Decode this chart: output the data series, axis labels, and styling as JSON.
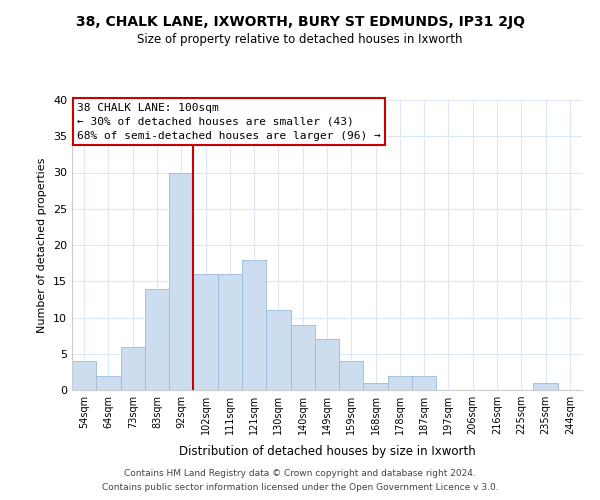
{
  "title": "38, CHALK LANE, IXWORTH, BURY ST EDMUNDS, IP31 2JQ",
  "subtitle": "Size of property relative to detached houses in Ixworth",
  "xlabel": "Distribution of detached houses by size in Ixworth",
  "ylabel": "Number of detached properties",
  "bar_color": "#cdddf0",
  "bar_edge_color": "#9bbad8",
  "highlight_line_color": "#cc0000",
  "categories": [
    "54sqm",
    "64sqm",
    "73sqm",
    "83sqm",
    "92sqm",
    "102sqm",
    "111sqm",
    "121sqm",
    "130sqm",
    "140sqm",
    "149sqm",
    "159sqm",
    "168sqm",
    "178sqm",
    "187sqm",
    "197sqm",
    "206sqm",
    "216sqm",
    "225sqm",
    "235sqm",
    "244sqm"
  ],
  "values": [
    4,
    2,
    6,
    14,
    30,
    16,
    16,
    18,
    11,
    9,
    7,
    4,
    1,
    2,
    2,
    0,
    0,
    0,
    0,
    1,
    0
  ],
  "ylim": [
    0,
    40
  ],
  "yticks": [
    0,
    5,
    10,
    15,
    20,
    25,
    30,
    35,
    40
  ],
  "annotation_title": "38 CHALK LANE: 100sqm",
  "annotation_line1": "← 30% of detached houses are smaller (43)",
  "annotation_line2": "68% of semi-detached houses are larger (96) →",
  "footer1": "Contains HM Land Registry data © Crown copyright and database right 2024.",
  "footer2": "Contains public sector information licensed under the Open Government Licence v 3.0.",
  "background_color": "#ffffff",
  "grid_color": "#dce8f5"
}
